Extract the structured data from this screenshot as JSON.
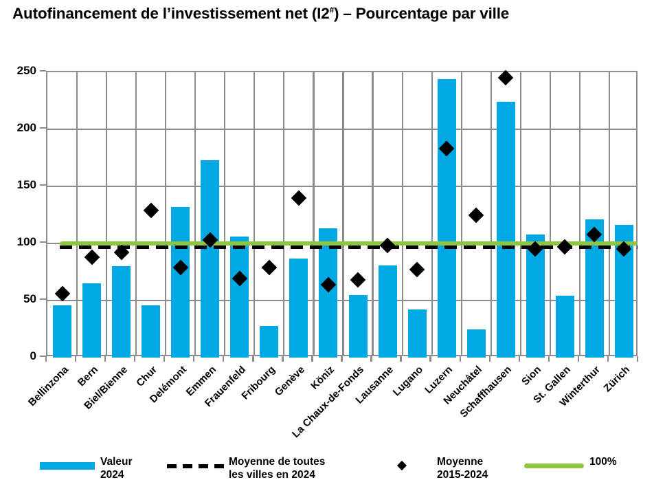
{
  "title": {
    "prefix": "Autofinancement de l’investissement net (I2",
    "sup": "#",
    "suffix": ") – Pourcentage par ville"
  },
  "chart_data": {
    "type": "bar",
    "title": "Autofinancement de l’investissement net (I2#) – Pourcentage par ville",
    "categories": [
      "Bellinzona",
      "Bern",
      "Biel/Bienne",
      "Chur",
      "Delémont",
      "Emmen",
      "Frauenfeld",
      "Fribourg",
      "Genève",
      "Köniz",
      "La Chaux-de-Fonds",
      "Lausanne",
      "Lugano",
      "Luzern",
      "Neuchâtel",
      "Schaffhausen",
      "Sion",
      "St. Gallen",
      "Winterthur",
      "Zürich"
    ],
    "series": [
      {
        "name": "Valeur 2024",
        "type": "bar",
        "color": "#00a8e4",
        "values": [
          46,
          65,
          80,
          46,
          132,
          173,
          106,
          28,
          87,
          113,
          55,
          81,
          42,
          244,
          25,
          224,
          108,
          54,
          121,
          116
        ]
      },
      {
        "name": "Moyenne 2015-2024",
        "type": "scatter-diamond",
        "color": "#000000",
        "values": [
          56,
          88,
          92,
          129,
          79,
          103,
          69,
          79,
          140,
          64,
          68,
          98,
          77,
          183,
          125,
          245,
          95,
          97,
          108,
          95
        ]
      },
      {
        "name": "Moyenne de toutes les villes en 2024",
        "type": "dashed-hline",
        "color": "#000000",
        "value": 97
      },
      {
        "name": "100%",
        "type": "hline",
        "color": "#8ec63f",
        "value": 100
      }
    ],
    "ylim": [
      0,
      250
    ],
    "yticks": [
      0,
      50,
      100,
      150,
      200,
      250
    ],
    "xlabel": "",
    "ylabel": "",
    "grid": true,
    "legend_position": "bottom"
  },
  "legend": {
    "items": [
      {
        "swatch": "bar-swatch",
        "line1": "Valeur",
        "line2": "2024"
      },
      {
        "swatch": "dashed-line-swatch",
        "line1": "Moyenne de toutes",
        "line2": "les villes en 2024"
      },
      {
        "swatch": "diamond-swatch",
        "line1": "Moyenne",
        "line2": "2015-2024"
      },
      {
        "swatch": "green-line-swatch",
        "line1": "100%",
        "line2": ""
      }
    ]
  },
  "colors": {
    "bar_blue": "#00a8e4",
    "line_green": "#8ec63f",
    "grid_gray": "#8c8c8c",
    "marker_black": "#000000"
  }
}
